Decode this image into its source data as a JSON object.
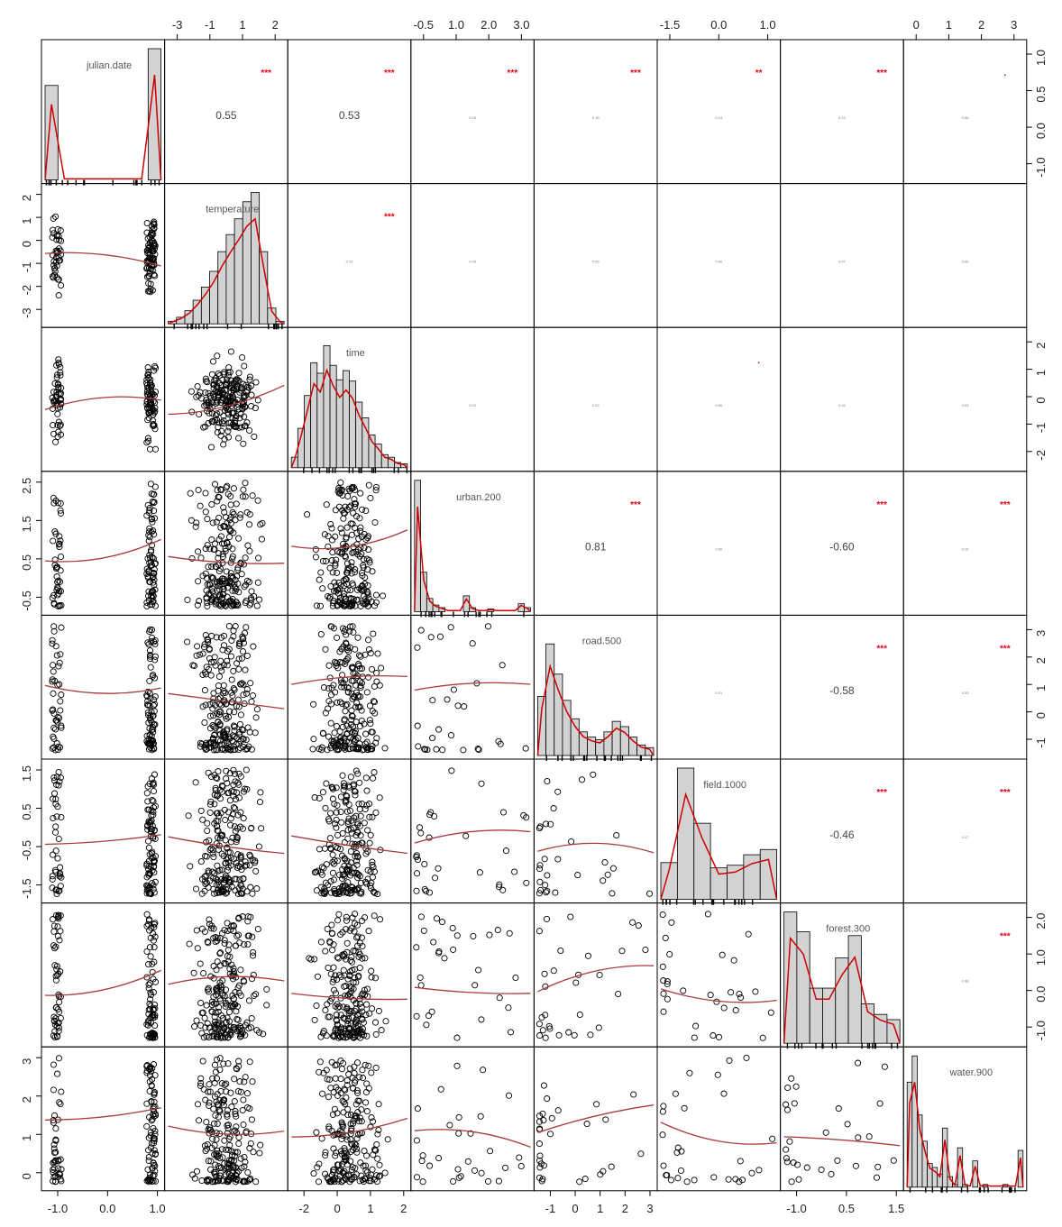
{
  "chart_data": {
    "type": "scatter-matrix",
    "variables": [
      "julian.date",
      "temperature",
      "time",
      "urban.200",
      "road.500",
      "field.1000",
      "forest.300",
      "water.900"
    ],
    "colors": {
      "bars": "#d3d3d3",
      "smooth": "#a83a3a",
      "density": "#cc0000",
      "stars": "#e0001a"
    },
    "top_ticks": [
      [
        "-3",
        "-1",
        "1",
        "2"
      ],
      [
        "-0.5",
        "1.0",
        "2.0",
        "3.0"
      ],
      [
        "-1.5",
        "0.0",
        "1.0"
      ],
      [
        "0",
        "1",
        "2",
        "3"
      ]
    ],
    "bottom_ticks": [
      [
        "-1.0",
        "0.0",
        "1.0"
      ],
      [
        "-2",
        "0",
        "1",
        "2"
      ],
      [
        "-1",
        "0",
        "1",
        "2",
        "3"
      ],
      [
        "-1.0",
        "0.5",
        "1.5"
      ]
    ],
    "left_ticks": [
      [
        "2",
        "1",
        "0",
        "-1",
        "-2",
        "-3"
      ],
      [
        "2.5",
        "1.5",
        "0.5",
        "-0.5"
      ],
      [
        "1.5",
        "0.5",
        "-0.5",
        "-1.5"
      ],
      [
        "3",
        "2",
        "1",
        "0"
      ]
    ],
    "right_ticks": [
      [
        "1.0",
        "0.5",
        "0.0",
        "-1.0"
      ],
      [
        "2",
        "1",
        "0",
        "-1",
        "-2"
      ],
      [
        "3",
        "2",
        "1",
        "0",
        "-1"
      ],
      [
        "2.0",
        "1.0",
        "0.0",
        "-1.0"
      ]
    ],
    "correlations": [
      {
        "row": 0,
        "col": 1,
        "value": "0.55",
        "stars": "***"
      },
      {
        "row": 0,
        "col": 2,
        "value": "0.53",
        "stars": "***"
      },
      {
        "row": 0,
        "col": 3,
        "value": "0.18",
        "stars": "***"
      },
      {
        "row": 0,
        "col": 4,
        "value": "0.18",
        "stars": "***"
      },
      {
        "row": 0,
        "col": 5,
        "value": "0.14",
        "stars": "**"
      },
      {
        "row": 0,
        "col": 6,
        "value": "0.13",
        "stars": "***"
      },
      {
        "row": 0,
        "col": 7,
        "value": "0.06",
        "stars": "."
      },
      {
        "row": 1,
        "col": 2,
        "value": "0.15",
        "stars": "***"
      },
      {
        "row": 1,
        "col": 3,
        "value": "0.06",
        "stars": ""
      },
      {
        "row": 1,
        "col": 4,
        "value": "0.05",
        "stars": ""
      },
      {
        "row": 1,
        "col": 5,
        "value": "0.06",
        "stars": ""
      },
      {
        "row": 1,
        "col": 6,
        "value": "0.07",
        "stars": ""
      },
      {
        "row": 1,
        "col": 7,
        "value": "0.05",
        "stars": ""
      },
      {
        "row": 2,
        "col": 3,
        "value": "0.03",
        "stars": ""
      },
      {
        "row": 2,
        "col": 4,
        "value": "0.02",
        "stars": ""
      },
      {
        "row": 2,
        "col": 5,
        "value": "0.06",
        "stars": "."
      },
      {
        "row": 2,
        "col": 6,
        "value": "0.04",
        "stars": ""
      },
      {
        "row": 2,
        "col": 7,
        "value": "0.03",
        "stars": ""
      },
      {
        "row": 3,
        "col": 4,
        "value": "0.81",
        "stars": "***"
      },
      {
        "row": 3,
        "col": 5,
        "value": "0.06",
        "stars": ""
      },
      {
        "row": 3,
        "col": 6,
        "value": "-0.60",
        "stars": "***"
      },
      {
        "row": 3,
        "col": 7,
        "value": "0.15",
        "stars": "***"
      },
      {
        "row": 4,
        "col": 5,
        "value": "0.01",
        "stars": ""
      },
      {
        "row": 4,
        "col": 6,
        "value": "-0.58",
        "stars": "***"
      },
      {
        "row": 4,
        "col": 7,
        "value": "0.33",
        "stars": "***"
      },
      {
        "row": 5,
        "col": 6,
        "value": "-0.46",
        "stars": "***"
      },
      {
        "row": 5,
        "col": 7,
        "value": "0.17",
        "stars": "***"
      },
      {
        "row": 6,
        "col": 7,
        "value": "0.38",
        "stars": "***"
      }
    ]
  }
}
